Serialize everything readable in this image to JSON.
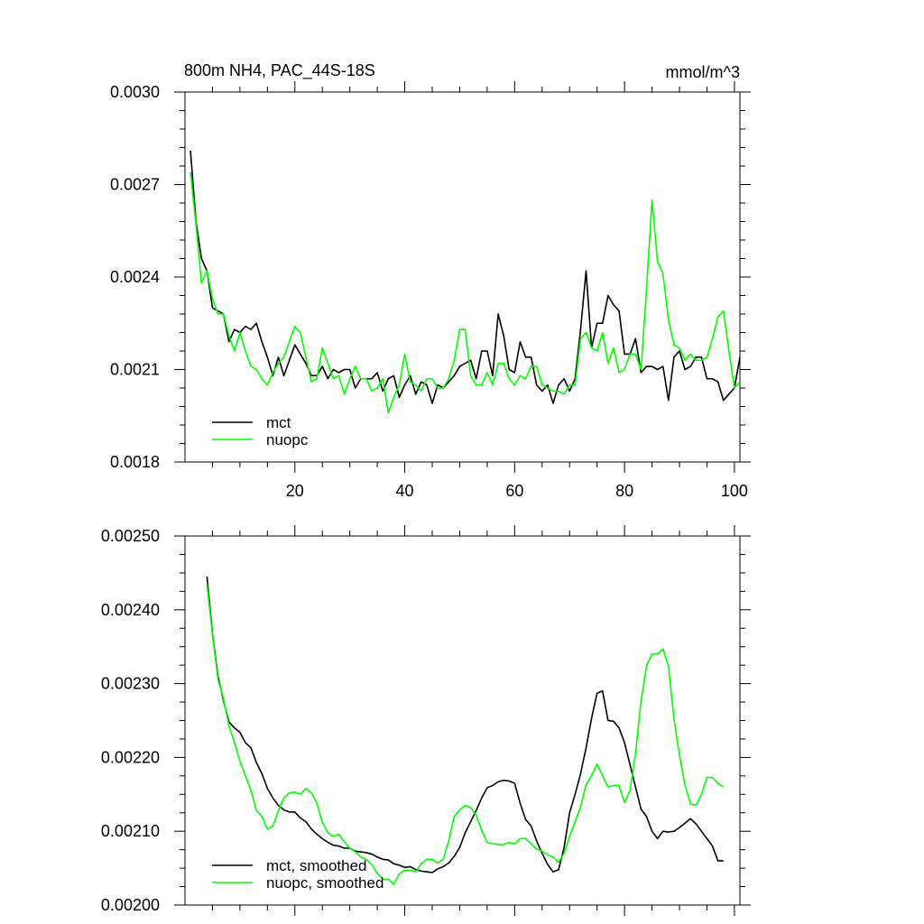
{
  "chart_data": [
    {
      "type": "line",
      "title": "800m NH4, PAC_44S-18S",
      "units": "mmol/m^3",
      "xlim": [
        0,
        101
      ],
      "ylim": [
        0.0018,
        0.003
      ],
      "x_ticks": [
        20,
        40,
        60,
        80,
        100
      ],
      "x_tick_labels": [
        "20",
        "40",
        "60",
        "80",
        "100"
      ],
      "y_ticks": [
        0.0018,
        0.0021,
        0.0024,
        0.0027,
        0.003
      ],
      "y_tick_labels": [
        "0.0018",
        "0.0021",
        "0.0024",
        "0.0027",
        "0.0030"
      ],
      "legend_position": "bottom-left",
      "series": [
        {
          "name": "mct",
          "color": "#000000",
          "x": [
            1,
            2,
            3,
            4,
            5,
            6,
            7,
            8,
            9,
            10,
            11,
            12,
            13,
            14,
            15,
            16,
            17,
            18,
            19,
            20,
            21,
            22,
            23,
            24,
            25,
            26,
            27,
            28,
            29,
            30,
            31,
            32,
            33,
            34,
            35,
            36,
            37,
            38,
            39,
            40,
            41,
            42,
            43,
            44,
            45,
            46,
            47,
            48,
            49,
            50,
            51,
            52,
            53,
            54,
            55,
            56,
            57,
            58,
            59,
            60,
            61,
            62,
            63,
            64,
            65,
            66,
            67,
            68,
            69,
            70,
            71,
            72,
            73,
            74,
            75,
            76,
            77,
            78,
            79,
            80,
            81,
            82,
            83,
            84,
            85,
            86,
            87,
            88,
            89,
            90,
            91,
            92,
            93,
            94,
            95,
            96,
            97,
            98,
            99,
            100,
            101
          ],
          "values": [
            0.00281,
            0.00258,
            0.00246,
            0.00242,
            0.0023,
            0.00229,
            0.00228,
            0.00219,
            0.00223,
            0.00222,
            0.00224,
            0.00223,
            0.00225,
            0.00219,
            0.00214,
            0.00208,
            0.00214,
            0.00208,
            0.00213,
            0.00218,
            0.00215,
            0.00212,
            0.00208,
            0.00208,
            0.00211,
            0.00207,
            0.0021,
            0.00209,
            0.0021,
            0.0021,
            0.00204,
            0.00207,
            0.00207,
            0.00207,
            0.00209,
            0.00203,
            0.00207,
            0.00208,
            0.00201,
            0.00205,
            0.00208,
            0.00202,
            0.00206,
            0.00205,
            0.00199,
            0.00205,
            0.00204,
            0.00206,
            0.00208,
            0.00211,
            0.00212,
            0.00213,
            0.00207,
            0.00216,
            0.00216,
            0.00208,
            0.00228,
            0.00221,
            0.0021,
            0.00209,
            0.00219,
            0.00214,
            0.00214,
            0.00205,
            0.00203,
            0.00205,
            0.00199,
            0.00205,
            0.00207,
            0.00203,
            0.00207,
            0.00223,
            0.00242,
            0.00217,
            0.00225,
            0.00225,
            0.00234,
            0.00231,
            0.00229,
            0.00215,
            0.00215,
            0.0022,
            0.00209,
            0.00211,
            0.00211,
            0.0021,
            0.00211,
            0.002,
            0.00214,
            0.00216,
            0.0021,
            0.00211,
            0.00214,
            0.00214,
            0.00207,
            0.00207,
            0.00206,
            0.002,
            0.00202,
            0.00204,
            0.00214
          ]
        },
        {
          "name": "nuopc",
          "color": "#00ff00",
          "x": [
            1,
            2,
            3,
            4,
            5,
            6,
            7,
            8,
            9,
            10,
            11,
            12,
            13,
            14,
            15,
            16,
            17,
            18,
            19,
            20,
            21,
            22,
            23,
            24,
            25,
            26,
            27,
            28,
            29,
            30,
            31,
            32,
            33,
            34,
            35,
            36,
            37,
            38,
            39,
            40,
            41,
            42,
            43,
            44,
            45,
            46,
            47,
            48,
            49,
            50,
            51,
            52,
            53,
            54,
            55,
            56,
            57,
            58,
            59,
            60,
            61,
            62,
            63,
            64,
            65,
            66,
            67,
            68,
            69,
            70,
            71,
            72,
            73,
            74,
            75,
            76,
            77,
            78,
            79,
            80,
            81,
            82,
            83,
            84,
            85,
            86,
            87,
            88,
            89,
            90,
            91,
            92,
            93,
            94,
            95,
            96,
            97,
            98,
            99,
            100,
            101
          ],
          "values": [
            0.00274,
            0.00257,
            0.00238,
            0.00242,
            0.00233,
            0.00228,
            0.00228,
            0.00221,
            0.00216,
            0.00222,
            0.00216,
            0.00211,
            0.0021,
            0.00207,
            0.00205,
            0.00209,
            0.00212,
            0.00214,
            0.00219,
            0.00224,
            0.00222,
            0.00214,
            0.00206,
            0.00207,
            0.00217,
            0.00212,
            0.00207,
            0.00208,
            0.00202,
            0.00207,
            0.00211,
            0.00207,
            0.00207,
            0.00203,
            0.00204,
            0.00207,
            0.00196,
            0.00201,
            0.00205,
            0.00215,
            0.00206,
            0.00205,
            0.00203,
            0.00207,
            0.00207,
            0.00204,
            0.00204,
            0.00207,
            0.00213,
            0.00223,
            0.00223,
            0.00208,
            0.00205,
            0.00205,
            0.00209,
            0.00205,
            0.00212,
            0.00212,
            0.00207,
            0.00205,
            0.00208,
            0.00207,
            0.00211,
            0.00211,
            0.00205,
            0.00204,
            0.00203,
            0.00203,
            0.00202,
            0.00205,
            0.00205,
            0.0022,
            0.00222,
            0.00217,
            0.00216,
            0.00222,
            0.00212,
            0.00217,
            0.00209,
            0.0021,
            0.00215,
            0.00215,
            0.0021,
            0.00236,
            0.00265,
            0.00245,
            0.00241,
            0.00226,
            0.00218,
            0.00217,
            0.00213,
            0.00215,
            0.00213,
            0.00213,
            0.00214,
            0.0022,
            0.00227,
            0.00229,
            0.00216,
            0.00204,
            0.00206
          ]
        }
      ]
    },
    {
      "type": "line",
      "title": "",
      "xlim": [
        0,
        101
      ],
      "ylim": [
        0.002,
        0.0025
      ],
      "x_ticks": [
        20,
        40,
        60,
        80,
        100
      ],
      "x_tick_labels": [],
      "y_ticks": [
        0.002,
        0.0021,
        0.0022,
        0.0023,
        0.0024,
        0.0025
      ],
      "y_tick_labels": [
        "0.00200",
        "0.00210",
        "0.00220",
        "0.00230",
        "0.00240",
        "0.00250"
      ],
      "legend_position": "bottom-left",
      "series": [
        {
          "name": "mct, smoothed",
          "color": "#000000",
          "x": [
            4,
            5,
            6,
            7,
            8,
            9,
            10,
            11,
            12,
            13,
            14,
            15,
            16,
            17,
            18,
            19,
            20,
            21,
            22,
            23,
            24,
            25,
            26,
            27,
            28,
            29,
            30,
            31,
            32,
            33,
            34,
            35,
            36,
            37,
            38,
            39,
            40,
            41,
            42,
            43,
            44,
            45,
            46,
            47,
            48,
            49,
            50,
            51,
            52,
            53,
            54,
            55,
            56,
            57,
            58,
            59,
            60,
            61,
            62,
            63,
            64,
            65,
            66,
            67,
            68,
            69,
            70,
            71,
            72,
            73,
            74,
            75,
            76,
            77,
            78,
            79,
            80,
            81,
            82,
            83,
            84,
            85,
            86,
            87,
            88,
            89,
            90,
            91,
            92,
            93,
            94,
            95,
            96,
            97,
            98
          ],
          "values": [
            0.002445,
            0.002368,
            0.00231,
            0.002277,
            0.002248,
            0.00224,
            0.002234,
            0.00222,
            0.002213,
            0.002193,
            0.002178,
            0.002158,
            0.002145,
            0.002135,
            0.002129,
            0.002126,
            0.002126,
            0.002118,
            0.002113,
            0.002103,
            0.002096,
            0.00209,
            0.002085,
            0.002081,
            0.00208,
            0.002077,
            0.002077,
            0.002073,
            0.002072,
            0.002071,
            0.002069,
            0.002065,
            0.002062,
            0.002061,
            0.002056,
            0.002054,
            0.002051,
            0.002052,
            0.002048,
            0.002046,
            0.002045,
            0.002044,
            0.002049,
            0.002052,
            0.002057,
            0.002066,
            0.002078,
            0.002098,
            0.002113,
            0.002128,
            0.002145,
            0.002159,
            0.002162,
            0.002167,
            0.002169,
            0.002168,
            0.002165,
            0.002138,
            0.002116,
            0.002107,
            0.002087,
            0.00207,
            0.002055,
            0.002045,
            0.002048,
            0.002078,
            0.002125,
            0.00215,
            0.002178,
            0.002213,
            0.002253,
            0.002287,
            0.00229,
            0.00225,
            0.002249,
            0.00224,
            0.00222,
            0.00219,
            0.00216,
            0.00213,
            0.00212,
            0.0021,
            0.00209,
            0.0021,
            0.002099,
            0.0021,
            0.002105,
            0.002111,
            0.002117,
            0.00211,
            0.0021,
            0.00209,
            0.00208,
            0.00206,
            0.00206
          ]
        },
        {
          "name": "nuopc, smoothed",
          "color": "#00ff00",
          "x": [
            4,
            5,
            6,
            7,
            8,
            9,
            10,
            11,
            12,
            13,
            14,
            15,
            16,
            17,
            18,
            19,
            20,
            21,
            22,
            23,
            24,
            25,
            26,
            27,
            28,
            29,
            30,
            31,
            32,
            33,
            34,
            35,
            36,
            37,
            38,
            39,
            40,
            41,
            42,
            43,
            44,
            45,
            46,
            47,
            48,
            49,
            50,
            51,
            52,
            53,
            54,
            55,
            56,
            57,
            58,
            59,
            60,
            61,
            62,
            63,
            64,
            65,
            66,
            67,
            68,
            69,
            70,
            71,
            72,
            73,
            74,
            75,
            76,
            77,
            78,
            79,
            80,
            81,
            82,
            83,
            84,
            85,
            86,
            87,
            88,
            89,
            90,
            91,
            92,
            93,
            94,
            95,
            96,
            97,
            98
          ],
          "values": [
            0.002435,
            0.002366,
            0.002306,
            0.00228,
            0.002243,
            0.00222,
            0.002195,
            0.002175,
            0.002155,
            0.002128,
            0.00212,
            0.002103,
            0.002107,
            0.002128,
            0.002145,
            0.002152,
            0.002153,
            0.00215,
            0.002158,
            0.002152,
            0.002138,
            0.002112,
            0.002098,
            0.002093,
            0.002096,
            0.002086,
            0.002077,
            0.002072,
            0.002065,
            0.002062,
            0.002055,
            0.002043,
            0.002035,
            0.002035,
            0.002028,
            0.002042,
            0.002047,
            0.002047,
            0.002045,
            0.002056,
            0.002062,
            0.002062,
            0.002057,
            0.002062,
            0.002087,
            0.00212,
            0.002129,
            0.002135,
            0.002132,
            0.002122,
            0.002101,
            0.002085,
            0.002083,
            0.002082,
            0.002082,
            0.002085,
            0.002083,
            0.00209,
            0.00209,
            0.002083,
            0.002076,
            0.002073,
            0.002068,
            0.002065,
            0.002058,
            0.00207,
            0.002093,
            0.002113,
            0.002133,
            0.002163,
            0.002175,
            0.002191,
            0.002175,
            0.00216,
            0.002162,
            0.002162,
            0.002139,
            0.002155,
            0.002205,
            0.002277,
            0.002324,
            0.00234,
            0.00234,
            0.002347,
            0.002323,
            0.002252,
            0.002203,
            0.002163,
            0.002137,
            0.002135,
            0.00215,
            0.002173,
            0.002173,
            0.002165,
            0.00216
          ]
        }
      ]
    }
  ]
}
